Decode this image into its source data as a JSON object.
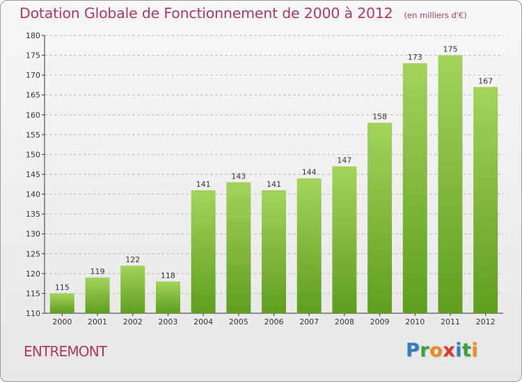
{
  "title": "Dotation Globale de Fonctionnement de 2000 à 2012",
  "subtitle": "(en milliers d'€)",
  "commune": "ENTREMONT",
  "logo": {
    "text": "Proxiti",
    "letters": [
      "P",
      "r",
      "o",
      "x",
      "i",
      "t",
      "i"
    ],
    "colors": [
      "#2f7fc3",
      "#3aa335",
      "#f08a1c",
      "#d93a2b",
      "#2f7fc3",
      "#3aa335",
      "#f08a1c"
    ]
  },
  "colors": {
    "title": "#b03864",
    "bar_top": "#a3d35b",
    "bar_bottom": "#5f9e1e",
    "grid": "#bdbdbd",
    "axis": "#333333"
  },
  "chart_data": {
    "type": "bar",
    "categories": [
      "2000",
      "2001",
      "2002",
      "2003",
      "2004",
      "2005",
      "2006",
      "2007",
      "2008",
      "2009",
      "2010",
      "2011",
      "2012"
    ],
    "values": [
      115,
      119,
      122,
      118,
      141,
      143,
      141,
      144,
      147,
      158,
      173,
      175,
      167
    ],
    "ylim": [
      110,
      180
    ],
    "yticks": [
      110,
      115,
      120,
      125,
      130,
      135,
      140,
      145,
      150,
      155,
      160,
      165,
      170,
      175,
      180
    ],
    "grid": true,
    "data_labels": true
  }
}
